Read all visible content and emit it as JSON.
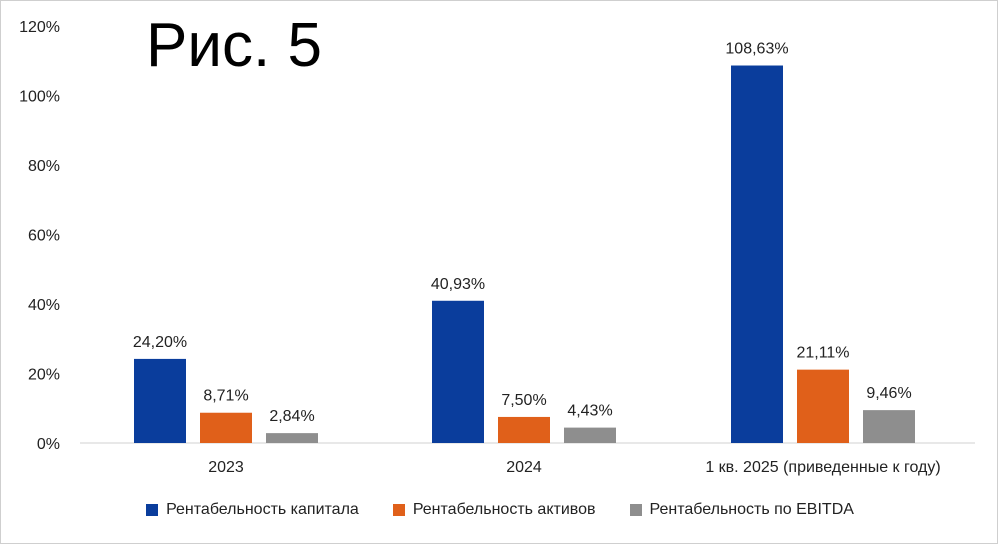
{
  "chart_data": {
    "type": "bar",
    "title": "Рис. 5",
    "categories": [
      "2023",
      "2024",
      "1 кв. 2025 (приведенные к году)"
    ],
    "series": [
      {
        "name": "Рентабельность капитала",
        "color": "#0a3d9c",
        "values": [
          24.2,
          40.93,
          108.63
        ],
        "labels": [
          "24,20%",
          "40,93%",
          "108,63%"
        ]
      },
      {
        "name": "Рентабельность активов",
        "color": "#e0601a",
        "values": [
          8.71,
          7.5,
          21.11
        ],
        "labels": [
          "8,71%",
          "7,50%",
          "21,11%"
        ]
      },
      {
        "name": "Рентабельность по EBITDA",
        "color": "#8e8e8e",
        "values": [
          2.84,
          4.43,
          9.46
        ],
        "labels": [
          "2,84%",
          "4,43%",
          "9,46%"
        ]
      }
    ],
    "yticks": [
      "0%",
      "20%",
      "40%",
      "60%",
      "80%",
      "100%",
      "120%"
    ],
    "ylim": [
      0,
      120
    ],
    "xlabel": "",
    "ylabel": "",
    "grid": false,
    "legend_position": "bottom"
  }
}
